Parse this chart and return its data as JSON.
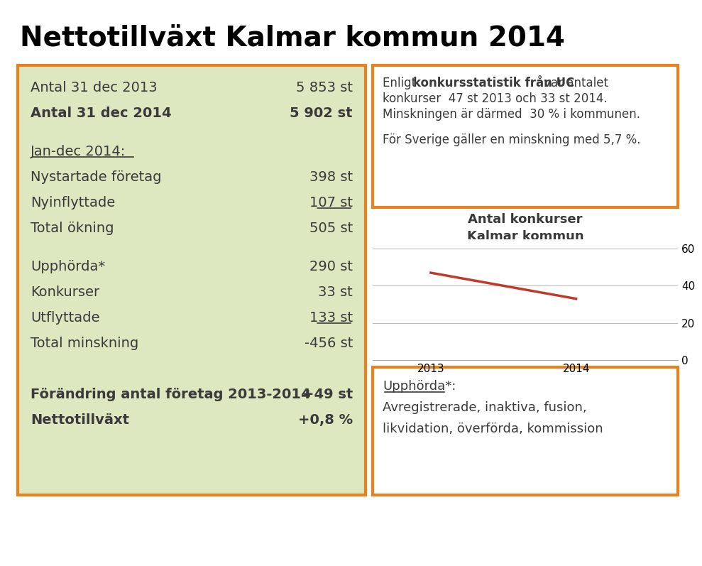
{
  "title": "Nettotillväxt Kalmar kommun 2014",
  "title_fontsize": 28,
  "title_fontweight": "bold",
  "bg_color": "#ffffff",
  "left_box_bg": "#dde8c0",
  "left_box_border": "#e8821e",
  "right_top_box_border": "#e8821e",
  "right_bottom_box_border": "#e8821e",
  "left_lines": [
    [
      "Antal 31 dec 2013",
      "5 853 st",
      false,
      false
    ],
    [
      "Antal 31 dec 2014",
      "5 902 st",
      true,
      false
    ],
    [
      "SPACER",
      "",
      false,
      false
    ],
    [
      "Jan-dec 2014:",
      "",
      false,
      true
    ],
    [
      "Nystartade företag",
      "398 st",
      false,
      false
    ],
    [
      "Nyinflyttade",
      "107 st",
      false,
      true
    ],
    [
      "Total ökning",
      "505 st",
      false,
      false
    ],
    [
      "SPACER",
      "",
      false,
      false
    ],
    [
      "Upphörda*",
      "290 st",
      false,
      false
    ],
    [
      "Konkurser",
      "33 st",
      false,
      false
    ],
    [
      "Utflyttade",
      "133 st",
      false,
      true
    ],
    [
      "Total minskning",
      "-456 st",
      false,
      false
    ],
    [
      "SPACER",
      "",
      false,
      false
    ],
    [
      "SPACER",
      "",
      false,
      false
    ],
    [
      "Förändring antal företag 2013-2014",
      "+49 st",
      true,
      false
    ],
    [
      "Nettotillväxt",
      "+0,8 %",
      true,
      false
    ]
  ],
  "chart_title_line1": "Antal konkurser",
  "chart_title_line2": "Kalmar kommun",
  "chart_years": [
    2013,
    2014
  ],
  "chart_values": [
    47,
    33
  ],
  "chart_line_color": "#c0392b",
  "chart_yticks": [
    0,
    20,
    40,
    60
  ],
  "right_bottom_text1": "Upphörda*:",
  "right_bottom_text2": "Avregistrerade, inaktiva, fusion,",
  "right_bottom_text3": "likvidation, överförda, kommission",
  "text_color": "#3a3a3a"
}
